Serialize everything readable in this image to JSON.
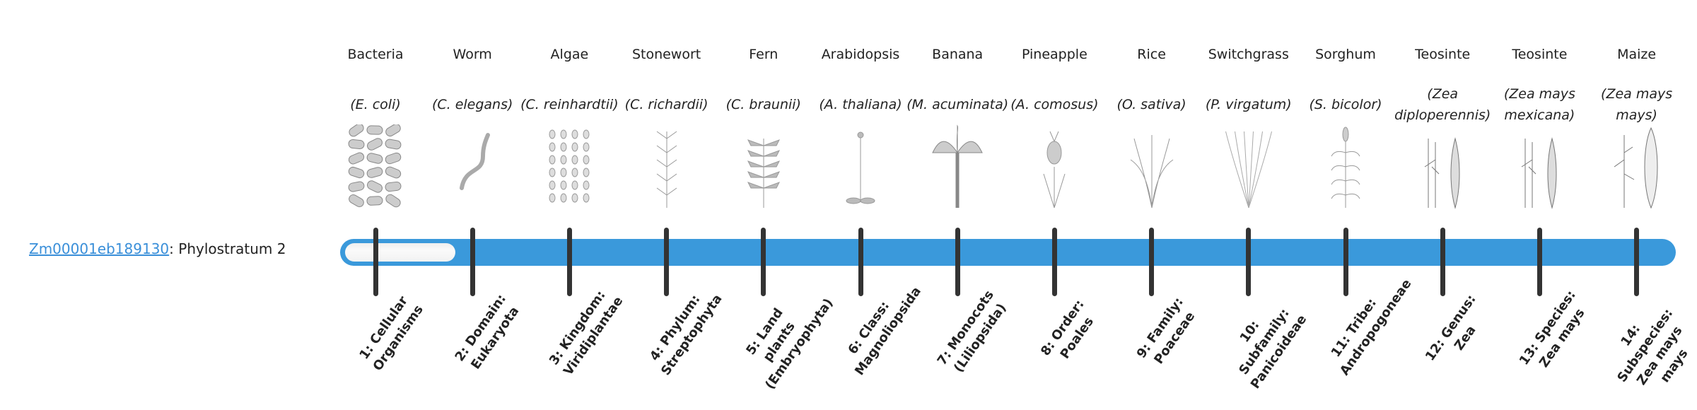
{
  "gene": {
    "id": "Zm00001eb189130",
    "suffix": ": Phylostratum 2"
  },
  "phylostratum": 2,
  "colors": {
    "bar": "#3a99db",
    "link": "#3a8fd9",
    "tick": "#333333"
  },
  "organisms": [
    {
      "common": "Bacteria",
      "species": "(E. coli)",
      "icon": "bacteria-icon",
      "stratum": "1: Cellular Organisms"
    },
    {
      "common": "Worm",
      "species": "(C. elegans)",
      "icon": "worm-icon",
      "stratum": "2: Domain: Eukaryota"
    },
    {
      "common": "Algae",
      "species": "(C. reinhardtii)",
      "icon": "algae-icon",
      "stratum": "3: Kingdom: Viridiplantae"
    },
    {
      "common": "Stonewort",
      "species": "(C. richardii)",
      "icon": "stonewort-icon",
      "stratum": "4: Phylum: Streptophyta"
    },
    {
      "common": "Fern",
      "species": "(C. braunii)",
      "icon": "fern-icon",
      "stratum": "5: Land plants (Embryophyta)"
    },
    {
      "common": "Arabidopsis",
      "species": "(A. thaliana)",
      "icon": "arabidopsis-icon",
      "stratum": "6: Class: Magnoliopsida"
    },
    {
      "common": "Banana",
      "species": "(M. acuminata)",
      "icon": "banana-icon",
      "stratum": "7: Monocots (Liliopsida)"
    },
    {
      "common": "Pineapple",
      "species": "(A. comosus)",
      "icon": "pineapple-icon",
      "stratum": "8: Order: Poales"
    },
    {
      "common": "Rice",
      "species": "(O. sativa)",
      "icon": "rice-icon",
      "stratum": "9: Family: Poaceae"
    },
    {
      "common": "Switchgrass",
      "species": "(P. virgatum)",
      "icon": "switchgrass-icon",
      "stratum": "10: Subfamily: Panicoideae"
    },
    {
      "common": "Sorghum",
      "species": "(S. bicolor)",
      "icon": "sorghum-icon",
      "stratum": "11: Tribe: Andropogoneae"
    },
    {
      "common": "Teosinte",
      "species": "(Zea diploperennis)",
      "icon": "teosinte-icon",
      "stratum": "12: Genus: Zea"
    },
    {
      "common": "Teosinte",
      "species": "(Zea mays mexicana)",
      "icon": "teosinte-icon",
      "stratum": "13: Species: Zea mays"
    },
    {
      "common": "Maize",
      "species": "(Zea mays mays)",
      "icon": "maize-icon",
      "stratum": "14: Subspecies: Zea mays mays"
    }
  ]
}
